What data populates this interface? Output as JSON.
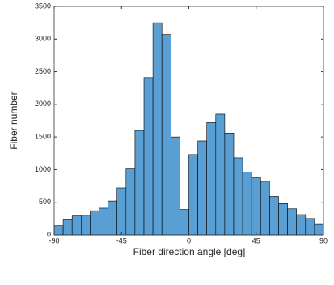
{
  "chart_data": {
    "type": "histogram",
    "x_label": "Fiber direction angle [deg]",
    "y_label": "Fiber number",
    "bins": [
      -90,
      -84,
      -78,
      -72,
      -66,
      -60,
      -54,
      -48,
      -42,
      -36,
      -30,
      -24,
      -18,
      -12,
      -6,
      0,
      6,
      12,
      18,
      24,
      30,
      36,
      42,
      48,
      54,
      60,
      66,
      72,
      78,
      84,
      90
    ],
    "values": [
      140,
      230,
      290,
      300,
      370,
      410,
      520,
      720,
      1010,
      1600,
      2410,
      3250,
      3070,
      1500,
      390,
      1230,
      1440,
      1720,
      1850,
      1560,
      1180,
      960,
      880,
      820,
      590,
      480,
      400,
      310,
      250,
      160
    ],
    "color": "#5a9fd4",
    "xlim": [
      -90,
      90
    ],
    "xticks": [
      -90,
      -45,
      0,
      45,
      90
    ],
    "ylim": [
      0,
      3500
    ],
    "yticks": [
      0,
      500,
      1000,
      1500,
      2000,
      2500,
      3000,
      3500
    ]
  }
}
